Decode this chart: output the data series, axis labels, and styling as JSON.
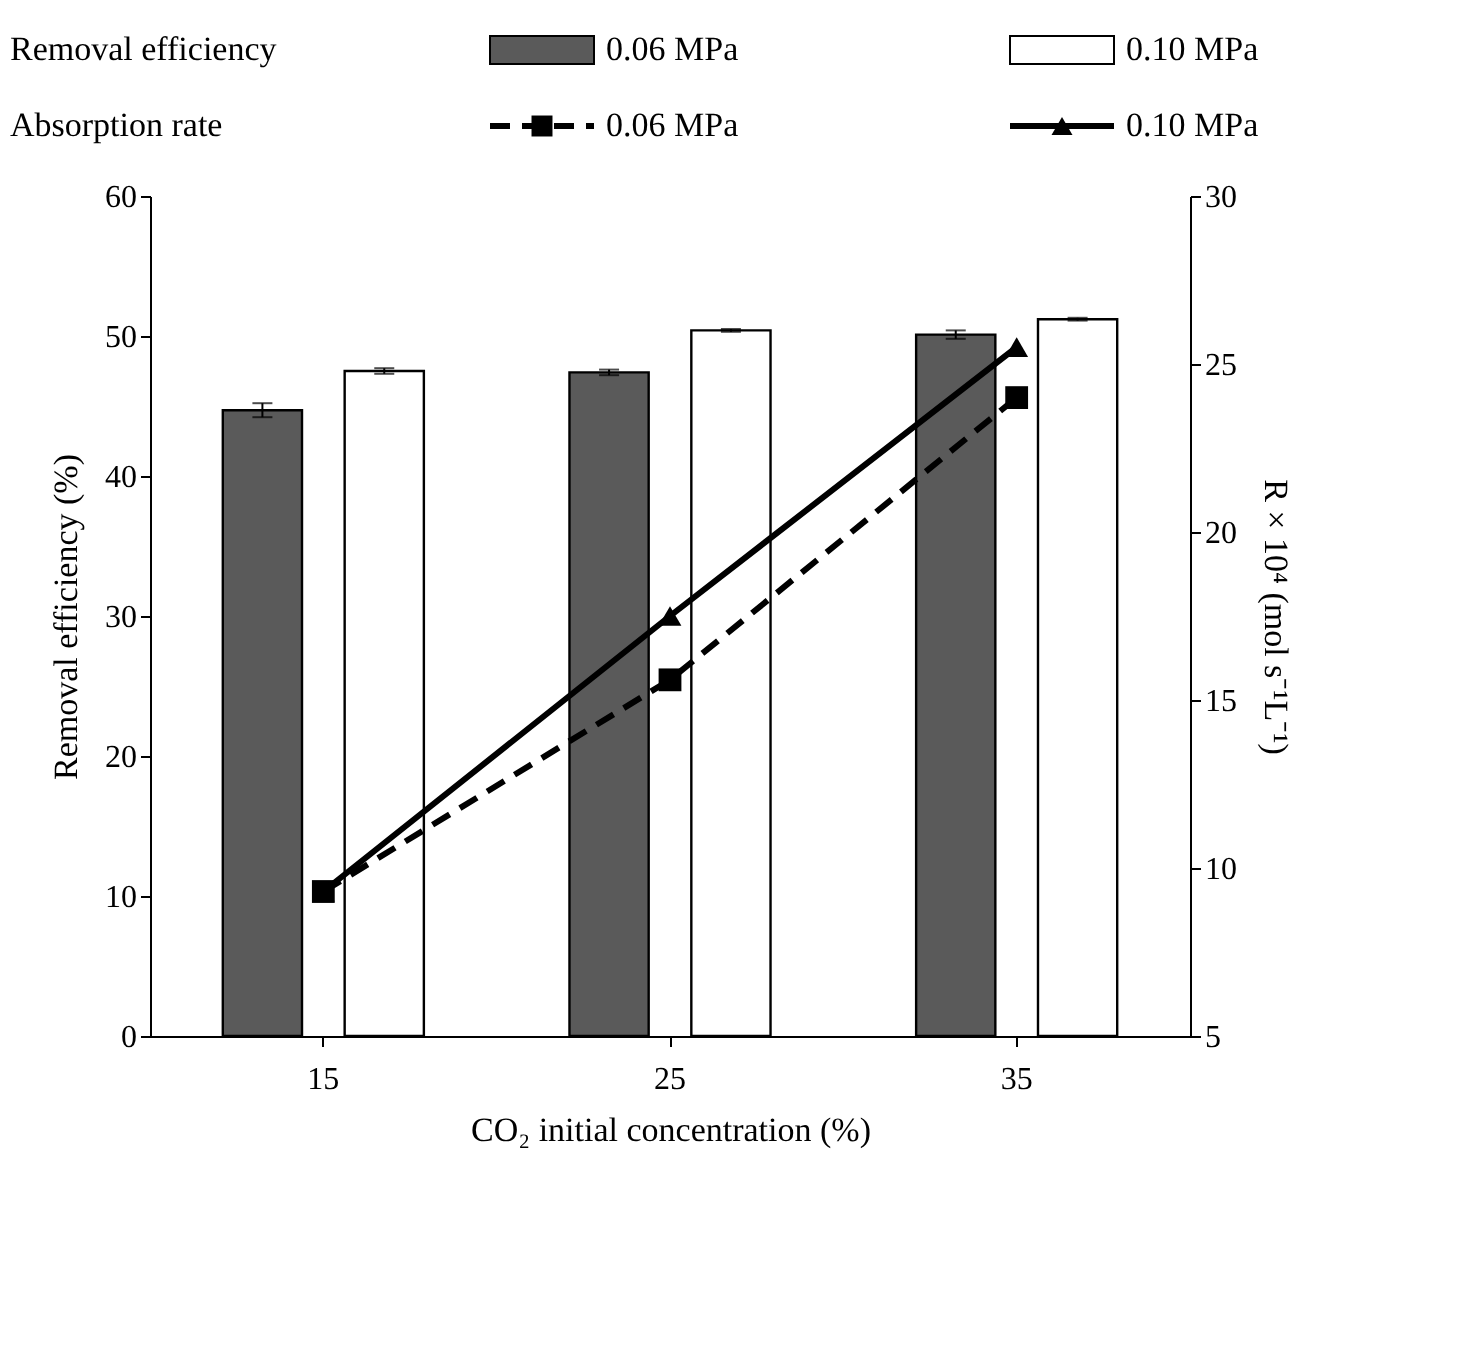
{
  "chart_data": {
    "type": "bar",
    "categories": [
      "15",
      "25",
      "35"
    ],
    "xlabel": "CO₂ initial concentration (%)",
    "ylabel": "Removal efficiency (%)",
    "y2label": "R × 10⁴ (mol s⁻¹L⁻¹)",
    "annotations": [
      "Removal efficiency",
      "Absorption rate"
    ],
    "ylim": [
      0,
      60
    ],
    "yticks": [
      0,
      10,
      20,
      30,
      40,
      50,
      60
    ],
    "y2lim": [
      5,
      30
    ],
    "y2ticks": [
      5,
      10,
      15,
      20,
      25,
      30
    ],
    "grid": false,
    "legend": "top",
    "series": [
      {
        "name": "0.06 MPa",
        "color": "#5a5a5a",
        "values": [
          44.7,
          47.4,
          50.1
        ],
        "errors": [
          0.5,
          0.2,
          0.3
        ]
      },
      {
        "name": "0.10 MPa",
        "color": "#ffffff",
        "values": [
          47.5,
          50.4,
          51.2
        ],
        "errors": [
          0.2,
          0.1,
          0.1
        ]
      },
      {
        "name": "0.06 MPa",
        "type": "line",
        "axis": "y2",
        "color": "#000000",
        "marker": "square",
        "line_style": "dashed",
        "values": [
          9.3,
          15.6,
          24.0
        ]
      },
      {
        "name": "0.10 MPa",
        "type": "line",
        "axis": "y2",
        "color": "#000000",
        "marker": "triangle",
        "line_style": "solid",
        "values": [
          9.3,
          17.5,
          25.5
        ]
      }
    ]
  }
}
